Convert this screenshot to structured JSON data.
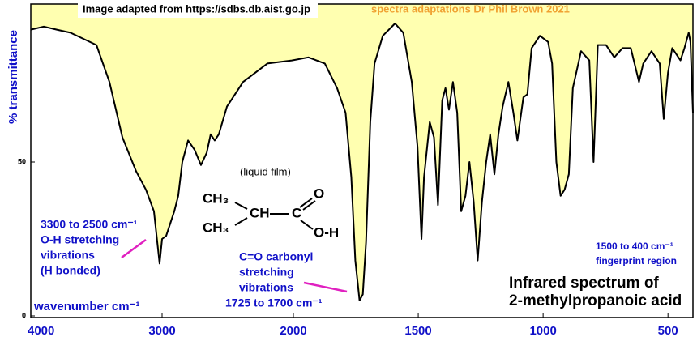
{
  "chart_data": {
    "type": "line",
    "title": "Infrared spectrum of",
    "subtitle": "2-methylpropanoic acid",
    "x_label": "wavenumber  cm⁻¹",
    "y_label": "% transmittance",
    "source": "Image adapted from https://sdbs.db.aist.go.jp",
    "credit": "spectra adaptations Dr Phil Brown 2021",
    "sample": "(liquid film)",
    "structure": [
      "CH₃",
      "CH₃",
      "CH",
      "C",
      "O",
      "O-H"
    ],
    "annotations": {
      "oh": [
        "3300 to 2500 cm⁻¹",
        "O-H stretching",
        "vibrations",
        "(H bonded)"
      ],
      "co": [
        "C=O carbonyl",
        "stretching",
        "vibrations",
        "1725 to 1700 cm⁻¹"
      ],
      "fingerprint": [
        "1500 to 400 cm⁻¹",
        "fingerprint region"
      ]
    },
    "xlim": [
      4000,
      400
    ],
    "x_scale_break": 2000,
    "xticks": [
      4000,
      3000,
      2000,
      1500,
      1000,
      500
    ],
    "ylim": [
      0,
      100
    ],
    "yticks": [
      0,
      50
    ],
    "x": [
      4000,
      3901,
      3802,
      3698,
      3599,
      3500,
      3401,
      3302,
      3198,
      3123,
      3062,
      3019,
      3000,
      2969,
      2938,
      2907,
      2877,
      2846,
      2802,
      2753,
      2704,
      2660,
      2630,
      2599,
      2568,
      2506,
      2383,
      2198,
      2012,
      1940,
      1874,
      1825,
      1791,
      1768,
      1752,
      1735,
      1722,
      1709,
      1692,
      1675,
      1642,
      1593,
      1560,
      1526,
      1503,
      1487,
      1477,
      1454,
      1437,
      1421,
      1404,
      1391,
      1377,
      1361,
      1344,
      1328,
      1311,
      1295,
      1278,
      1262,
      1245,
      1228,
      1212,
      1195,
      1179,
      1162,
      1139,
      1119,
      1103,
      1079,
      1063,
      1046,
      1013,
      980,
      964,
      947,
      930,
      914,
      897,
      881,
      848,
      815,
      798,
      781,
      748,
      715,
      682,
      649,
      616,
      599,
      566,
      533,
      517,
      500,
      483,
      450,
      434,
      417,
      410,
      400
    ],
    "series": [
      {
        "name": "2-methylpropanoic acid",
        "color": "#000000",
        "fill_color": "#ffffb0",
        "values": [
          93,
          94,
          93,
          92,
          90,
          88,
          76,
          58,
          47,
          41,
          34,
          17,
          25,
          26,
          30,
          34,
          39,
          50,
          57,
          54,
          49,
          53,
          59,
          57,
          59,
          68,
          76,
          82,
          83,
          84,
          82,
          74,
          66,
          45,
          18,
          5,
          7,
          24,
          63,
          82,
          91,
          95,
          92,
          76,
          55,
          25,
          45,
          63,
          58,
          36,
          70,
          74,
          67,
          76,
          66,
          34,
          39,
          50,
          37,
          18,
          37,
          50,
          59,
          46,
          59,
          68,
          76,
          66,
          57,
          71,
          72,
          87,
          91,
          89,
          82,
          50,
          39,
          41,
          46,
          74,
          86,
          83,
          50,
          88,
          88,
          84,
          87,
          87,
          76,
          82,
          86,
          82,
          64,
          79,
          87,
          83,
          87,
          92,
          89,
          66
        ]
      }
    ]
  }
}
